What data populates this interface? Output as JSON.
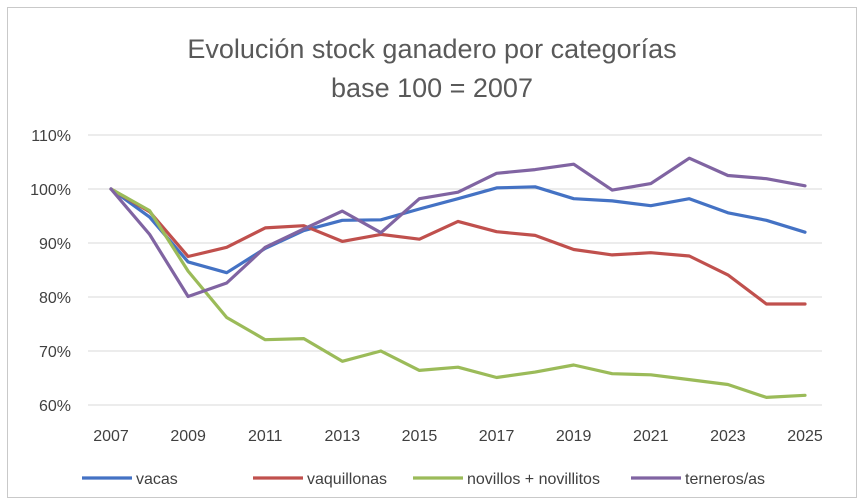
{
  "chart_data": {
    "type": "line",
    "title": [
      "Evolución stock ganadero por categorías",
      "base 100 = 2007"
    ],
    "xlabel": "",
    "ylabel": "",
    "x": [
      2007,
      2008,
      2009,
      2010,
      2011,
      2012,
      2013,
      2014,
      2015,
      2016,
      2017,
      2018,
      2019,
      2020,
      2021,
      2022,
      2023,
      2024,
      2025
    ],
    "x_tick_labels": [
      "2007",
      "2009",
      "2011",
      "2013",
      "2015",
      "2017",
      "2019",
      "2021",
      "2023",
      "2025"
    ],
    "y_tick_labels": [
      "60%",
      "70%",
      "80%",
      "90%",
      "100%",
      "110%"
    ],
    "ylim": [
      58,
      111
    ],
    "y_ticks": [
      60,
      70,
      80,
      90,
      100,
      110
    ],
    "grid": true,
    "legend_position": "bottom",
    "series": [
      {
        "name": "vacas",
        "color": "#4472C4",
        "values": [
          100,
          94.8,
          86.5,
          84.5,
          89,
          92.3,
          94.2,
          94.3,
          96.3,
          98.2,
          100.2,
          100.4,
          98.2,
          97.8,
          96.9,
          98.2,
          95.6,
          94.2,
          92
        ]
      },
      {
        "name": "vaquillonas",
        "color": "#C0504D",
        "values": [
          100,
          95.8,
          87.5,
          89.2,
          92.8,
          93.2,
          90.3,
          91.6,
          90.7,
          94,
          92.1,
          91.4,
          88.8,
          87.8,
          88.2,
          87.6,
          84.1,
          78.7,
          78.7
        ]
      },
      {
        "name": "novillos + novillitos",
        "color": "#9BBB59",
        "values": [
          100,
          96,
          84.8,
          76.2,
          72.1,
          72.3,
          68.1,
          70,
          66.4,
          67,
          65.1,
          66.1,
          67.4,
          65.8,
          65.6,
          64.7,
          63.8,
          61.4,
          61.8
        ]
      },
      {
        "name": "terneros/as",
        "color": "#8064A2",
        "values": [
          100,
          91.6,
          80.1,
          82.6,
          89.2,
          92.6,
          95.9,
          91.9,
          98.2,
          99.4,
          102.9,
          103.6,
          104.6,
          99.8,
          101,
          105.7,
          102.5,
          101.9,
          100.6
        ]
      }
    ]
  }
}
